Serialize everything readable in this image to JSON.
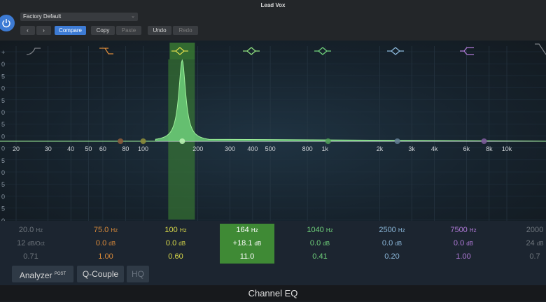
{
  "window": {
    "title": "Lead Vox",
    "footer_title": "Channel EQ"
  },
  "toolbar": {
    "preset": "Factory Default",
    "compare": "Compare",
    "copy": "Copy",
    "paste": "Paste",
    "undo": "Undo",
    "redo": "Redo"
  },
  "colors": {
    "accent": "#3d7bd4",
    "selected_band": "#3f8a35",
    "curve_fill": "#6fd07a"
  },
  "graph": {
    "db_labels": [
      "+",
      "0",
      "5",
      "0",
      "5",
      "0",
      "5",
      "0",
      "0",
      "5",
      "0",
      "5",
      "0",
      "5",
      "0"
    ],
    "freq_labels": [
      "20",
      "30",
      "40",
      "50",
      "60",
      "80",
      "100",
      "200",
      "300",
      "400",
      "500",
      "800",
      "1k",
      "2k",
      "3k",
      "4k",
      "6k",
      "8k",
      "10k"
    ]
  },
  "bands": [
    {
      "freq": "20.0",
      "freq_unit": "Hz",
      "gain": "12",
      "gain_unit": "dB/Oct",
      "q": "0.71",
      "color": "#7a7e84",
      "icon": "low-cut-icon"
    },
    {
      "freq": "75.0",
      "freq_unit": "Hz",
      "gain": "0.0",
      "gain_unit": "dB",
      "q": "1.00",
      "color": "#d98a3a",
      "icon": "low-shelf-icon"
    },
    {
      "freq": "100",
      "freq_unit": "Hz",
      "gain": "0.0",
      "gain_unit": "dB",
      "q": "0.60",
      "color": "#d8d84a",
      "icon": "bell-icon"
    },
    {
      "freq": "164",
      "freq_unit": "Hz",
      "gain": "+18.1",
      "gain_unit": "dB",
      "q": "11.0",
      "color": "#8ee07e",
      "icon": "bell-icon"
    },
    {
      "freq": "1040",
      "freq_unit": "Hz",
      "gain": "0.0",
      "gain_unit": "dB",
      "q": "0.41",
      "color": "#6fd07a",
      "icon": "bell-icon"
    },
    {
      "freq": "2500",
      "freq_unit": "Hz",
      "gain": "0.0",
      "gain_unit": "dB",
      "q": "0.20",
      "color": "#8ab6d8",
      "icon": "bell-icon"
    },
    {
      "freq": "7500",
      "freq_unit": "Hz",
      "gain": "0.0",
      "gain_unit": "dB",
      "q": "1.00",
      "color": "#b07ad8",
      "icon": "high-shelf-icon"
    },
    {
      "freq": "2000",
      "freq_unit": "",
      "gain": "24",
      "gain_unit": "dB",
      "q": "0.7",
      "color": "#7a7e84",
      "icon": "high-cut-icon"
    }
  ],
  "selected_band": 3,
  "bottom": {
    "analyzer": "Analyzer",
    "analyzer_badge": "POST",
    "q_couple": "Q-Couple",
    "hq": "HQ"
  }
}
